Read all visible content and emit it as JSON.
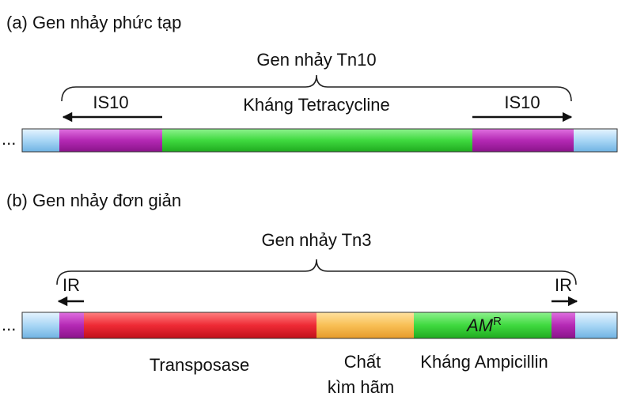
{
  "panel_a": {
    "title": "(a) Gen nhảy phức tạp",
    "brace_label": "Gen nhảy Tn10",
    "left_label": "IS10",
    "center_label": "Kháng Tetracycline",
    "right_label": "IS10",
    "ellipsis": "..."
  },
  "panel_b": {
    "title": "(b) Gen nhảy đơn giản",
    "brace_label": "Gen nhảy Tn3",
    "left_label": "IR",
    "right_label": "IR",
    "gene_label": "AM",
    "gene_superscript": "R",
    "labels": [
      "Transposase",
      "Chất",
      "kìm hãm",
      "Kháng Ampicillin"
    ],
    "ellipsis": "..."
  }
}
